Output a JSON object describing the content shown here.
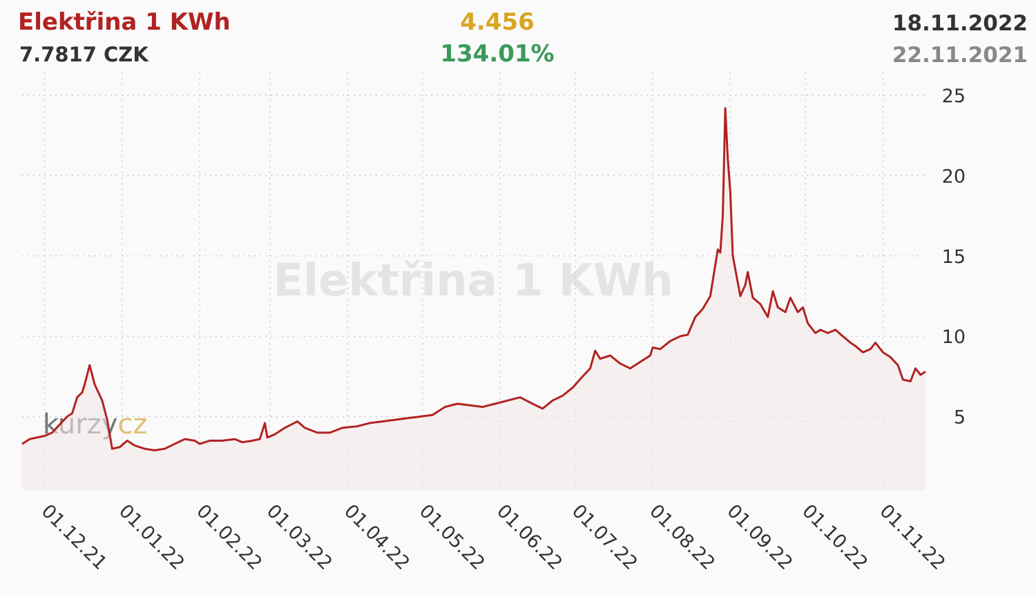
{
  "header": {
    "title": "Elektřina 1 KWh",
    "price": "7.7817 CZK",
    "change": "4.456",
    "change_pct": "134.01%",
    "date_to": "18.11.2022",
    "date_from": "22.11.2021"
  },
  "watermark": "Elektřina 1 KWh",
  "logo": {
    "part1": "kurzy",
    "part2": "cz"
  },
  "colors": {
    "line": "#b22222",
    "title": "#b22222",
    "change": "#daa520",
    "change_pct": "#3a9a5a",
    "grid": "#cccccc"
  },
  "chart_data": {
    "type": "line",
    "title": "Elektřina 1 KWh",
    "xlabel": "",
    "ylabel": "",
    "x_range": [
      "2021-11-22",
      "2022-11-18"
    ],
    "ylim": [
      0,
      25
    ],
    "y_ticks": [
      5,
      10,
      15,
      20,
      25
    ],
    "x_ticks": [
      {
        "date": "2021-12-01",
        "label": "01.12.21"
      },
      {
        "date": "2022-01-01",
        "label": "01.01.22"
      },
      {
        "date": "2022-02-01",
        "label": "01.02.22"
      },
      {
        "date": "2022-03-01",
        "label": "01.03.22"
      },
      {
        "date": "2022-04-01",
        "label": "01.04.22"
      },
      {
        "date": "2022-05-01",
        "label": "01.05.22"
      },
      {
        "date": "2022-06-01",
        "label": "01.06.22"
      },
      {
        "date": "2022-07-01",
        "label": "01.07.22"
      },
      {
        "date": "2022-08-01",
        "label": "01.08.22"
      },
      {
        "date": "2022-09-01",
        "label": "01.09.22"
      },
      {
        "date": "2022-10-01",
        "label": "01.10.22"
      },
      {
        "date": "2022-11-01",
        "label": "01.11.22"
      }
    ],
    "grid": true,
    "legend": "none",
    "series": [
      {
        "points": [
          [
            "2021-11-22",
            3.3
          ],
          [
            "2021-11-25",
            3.6
          ],
          [
            "2021-11-28",
            3.7
          ],
          [
            "2021-12-01",
            3.8
          ],
          [
            "2021-12-04",
            4.0
          ],
          [
            "2021-12-07",
            4.5
          ],
          [
            "2021-12-10",
            5.0
          ],
          [
            "2021-12-12",
            5.2
          ],
          [
            "2021-12-14",
            6.2
          ],
          [
            "2021-12-16",
            6.5
          ],
          [
            "2021-12-17",
            7.0
          ],
          [
            "2021-12-19",
            8.2
          ],
          [
            "2021-12-21",
            7.0
          ],
          [
            "2021-12-24",
            6.0
          ],
          [
            "2021-12-26",
            4.8
          ],
          [
            "2021-12-28",
            3.0
          ],
          [
            "2021-12-31",
            3.1
          ],
          [
            "2022-01-03",
            3.5
          ],
          [
            "2022-01-06",
            3.2
          ],
          [
            "2022-01-10",
            3.0
          ],
          [
            "2022-01-14",
            2.9
          ],
          [
            "2022-01-18",
            3.0
          ],
          [
            "2022-01-22",
            3.3
          ],
          [
            "2022-01-26",
            3.6
          ],
          [
            "2022-01-30",
            3.5
          ],
          [
            "2022-02-01",
            3.3
          ],
          [
            "2022-02-05",
            3.5
          ],
          [
            "2022-02-10",
            3.5
          ],
          [
            "2022-02-15",
            3.6
          ],
          [
            "2022-02-18",
            3.4
          ],
          [
            "2022-02-22",
            3.5
          ],
          [
            "2022-02-25",
            3.6
          ],
          [
            "2022-02-27",
            4.6
          ],
          [
            "2022-02-28",
            3.7
          ],
          [
            "2022-03-03",
            3.9
          ],
          [
            "2022-03-07",
            4.3
          ],
          [
            "2022-03-12",
            4.7
          ],
          [
            "2022-03-15",
            4.3
          ],
          [
            "2022-03-20",
            4.0
          ],
          [
            "2022-03-25",
            4.0
          ],
          [
            "2022-03-30",
            4.3
          ],
          [
            "2022-04-05",
            4.4
          ],
          [
            "2022-04-10",
            4.6
          ],
          [
            "2022-04-15",
            4.7
          ],
          [
            "2022-04-20",
            4.8
          ],
          [
            "2022-04-25",
            4.9
          ],
          [
            "2022-04-30",
            5.0
          ],
          [
            "2022-05-05",
            5.1
          ],
          [
            "2022-05-10",
            5.6
          ],
          [
            "2022-05-15",
            5.8
          ],
          [
            "2022-05-20",
            5.7
          ],
          [
            "2022-05-25",
            5.6
          ],
          [
            "2022-05-30",
            5.8
          ],
          [
            "2022-06-04",
            6.0
          ],
          [
            "2022-06-09",
            6.2
          ],
          [
            "2022-06-14",
            5.8
          ],
          [
            "2022-06-18",
            5.5
          ],
          [
            "2022-06-22",
            6.0
          ],
          [
            "2022-06-26",
            6.3
          ],
          [
            "2022-06-30",
            6.8
          ],
          [
            "2022-07-04",
            7.5
          ],
          [
            "2022-07-07",
            8.0
          ],
          [
            "2022-07-09",
            9.1
          ],
          [
            "2022-07-11",
            8.6
          ],
          [
            "2022-07-15",
            8.8
          ],
          [
            "2022-07-19",
            8.3
          ],
          [
            "2022-07-23",
            8.0
          ],
          [
            "2022-07-27",
            8.4
          ],
          [
            "2022-07-31",
            8.8
          ],
          [
            "2022-08-01",
            9.3
          ],
          [
            "2022-08-04",
            9.2
          ],
          [
            "2022-08-08",
            9.7
          ],
          [
            "2022-08-12",
            10.0
          ],
          [
            "2022-08-15",
            10.1
          ],
          [
            "2022-08-18",
            11.2
          ],
          [
            "2022-08-21",
            11.7
          ],
          [
            "2022-08-24",
            12.5
          ],
          [
            "2022-08-27",
            15.4
          ],
          [
            "2022-08-28",
            15.2
          ],
          [
            "2022-08-29",
            17.5
          ],
          [
            "2022-08-30",
            24.2
          ],
          [
            "2022-08-31",
            21.0
          ],
          [
            "2022-09-01",
            19.0
          ],
          [
            "2022-09-02",
            15.0
          ],
          [
            "2022-09-05",
            12.5
          ],
          [
            "2022-09-07",
            13.2
          ],
          [
            "2022-09-08",
            14.0
          ],
          [
            "2022-09-10",
            12.4
          ],
          [
            "2022-09-13",
            12.0
          ],
          [
            "2022-09-16",
            11.2
          ],
          [
            "2022-09-18",
            12.8
          ],
          [
            "2022-09-20",
            11.8
          ],
          [
            "2022-09-23",
            11.5
          ],
          [
            "2022-09-25",
            12.4
          ],
          [
            "2022-09-28",
            11.5
          ],
          [
            "2022-09-30",
            11.8
          ],
          [
            "2022-10-02",
            10.8
          ],
          [
            "2022-10-05",
            10.2
          ],
          [
            "2022-10-07",
            10.4
          ],
          [
            "2022-10-10",
            10.2
          ],
          [
            "2022-10-13",
            10.4
          ],
          [
            "2022-10-16",
            10.0
          ],
          [
            "2022-10-19",
            9.6
          ],
          [
            "2022-10-21",
            9.4
          ],
          [
            "2022-10-24",
            9.0
          ],
          [
            "2022-10-27",
            9.2
          ],
          [
            "2022-10-29",
            9.6
          ],
          [
            "2022-11-01",
            9.0
          ],
          [
            "2022-11-04",
            8.7
          ],
          [
            "2022-11-07",
            8.2
          ],
          [
            "2022-11-09",
            7.3
          ],
          [
            "2022-11-12",
            7.2
          ],
          [
            "2022-11-14",
            8.0
          ],
          [
            "2022-11-16",
            7.6
          ],
          [
            "2022-11-18",
            7.8
          ]
        ]
      }
    ]
  }
}
